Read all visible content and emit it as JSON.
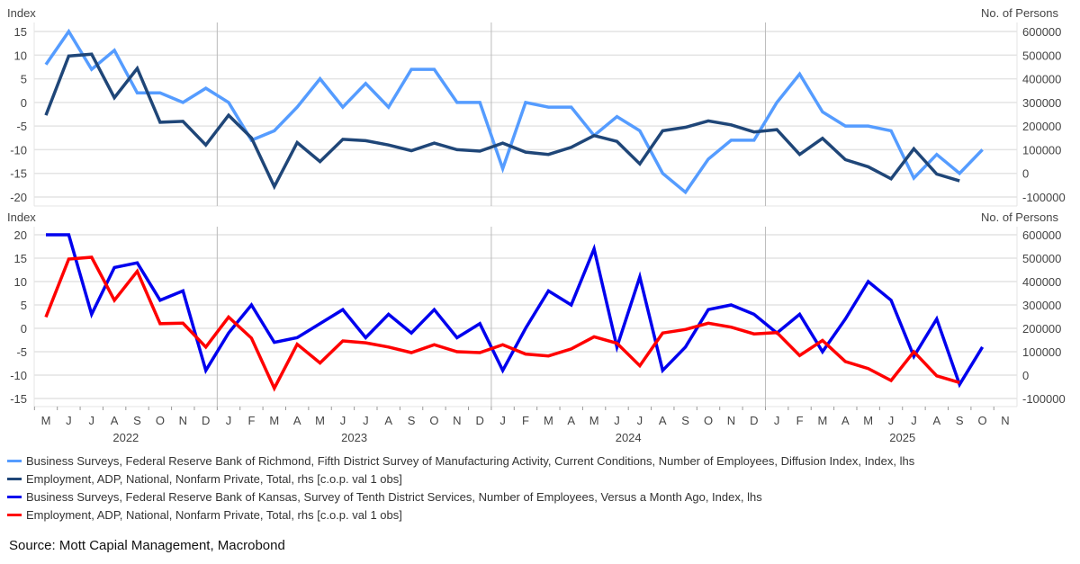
{
  "colors": {
    "richmond": "#559cff",
    "adp_top": "#1f4678",
    "kansas": "#0000ee",
    "adp_bottom": "#ff0000",
    "grid": "#e4e4e4",
    "year_line": "#bbbbbb"
  },
  "x_months": [
    "M",
    "J",
    "J",
    "A",
    "S",
    "O",
    "N",
    "D",
    "J",
    "F",
    "M",
    "A",
    "M",
    "J",
    "J",
    "A",
    "S",
    "O",
    "N",
    "D",
    "J",
    "F",
    "M",
    "A",
    "M",
    "J",
    "J",
    "A",
    "S",
    "O",
    "N",
    "D",
    "J",
    "F",
    "M",
    "A",
    "M",
    "J",
    "J",
    "A",
    "S",
    "O",
    "N"
  ],
  "x_years": [
    {
      "label": "2022",
      "center_month": "2022-09"
    },
    {
      "label": "2023",
      "center_month": "2023-07"
    },
    {
      "label": "2024",
      "center_month": "2024-07"
    },
    {
      "label": "2025",
      "center_month": "2025-07"
    }
  ],
  "chart_data": [
    {
      "type": "line",
      "x_start": "2022-05",
      "x_end": "2025-11",
      "ylabel_left": "Index",
      "ylabel_right": "No. of Persons",
      "ylim_left": [
        -20,
        15
      ],
      "yticks_left": [
        15,
        10,
        5,
        0,
        -5,
        -10,
        -15,
        -20
      ],
      "ylim_right": [
        -100000,
        600000
      ],
      "yticks_right": [
        600000,
        500000,
        400000,
        300000,
        200000,
        100000,
        0,
        -100000
      ],
      "grid": true,
      "series": [
        {
          "name": "Business Surveys, Federal Reserve Bank of Richmond, Fifth District Survey of Manufacturing Activity, Current Conditions, Number of Employees, Diffusion Index, Index, lhs",
          "axis": "left",
          "color_key": "richmond",
          "start": "2022-05",
          "values": [
            8,
            15,
            7,
            11,
            2,
            2,
            0,
            3,
            0,
            -8,
            -6,
            -1,
            5,
            -1,
            4,
            -1,
            7,
            7,
            0,
            0,
            -14,
            0,
            -1,
            -1,
            -7,
            -3,
            -6,
            -15,
            -19,
            -12,
            -8,
            -8,
            0,
            6,
            -2,
            -5,
            -5,
            -6,
            -16,
            -11,
            -15,
            -10
          ]
        },
        {
          "name": "Employment, ADP, National, Nonfarm Private, Total, rhs [c.o.p. val 1 obs]",
          "axis": "right",
          "color_key": "adp_top",
          "start": "2022-05",
          "values": [
            246000,
            496000,
            504000,
            320000,
            444000,
            216000,
            220000,
            120000,
            246000,
            150000,
            -56000,
            130000,
            50000,
            144000,
            138000,
            120000,
            96000,
            128000,
            100000,
            94000,
            128000,
            90000,
            80000,
            110000,
            160000,
            135000,
            40000,
            180000,
            195000,
            222000,
            205000,
            175000,
            185000,
            80000,
            148000,
            58000,
            28000,
            -23000,
            104000,
            -3000,
            -32000
          ]
        }
      ]
    },
    {
      "type": "line",
      "x_start": "2022-05",
      "x_end": "2025-11",
      "ylabel_left": "Index",
      "ylabel_right": "No. of Persons",
      "ylim_left": [
        -15,
        20
      ],
      "yticks_left": [
        20,
        15,
        10,
        5,
        0,
        -5,
        -10,
        -15
      ],
      "ylim_right": [
        -100000,
        600000
      ],
      "yticks_right": [
        600000,
        500000,
        400000,
        300000,
        200000,
        100000,
        0,
        -100000
      ],
      "grid": true,
      "series": [
        {
          "name": "Business Surveys, Federal Reserve Bank of Kansas, Survey of Tenth District Services, Number of Employees, Versus a Month Ago, Index, lhs",
          "axis": "left",
          "color_key": "kansas",
          "start": "2022-05",
          "values": [
            20,
            20,
            3,
            13,
            14,
            6,
            8,
            -9,
            -1,
            5,
            -3,
            -2,
            1,
            4,
            -2,
            3,
            -1,
            4,
            -2,
            1,
            -9,
            0,
            8,
            5,
            17,
            -4,
            11,
            -9,
            -4,
            4,
            5,
            3,
            -1,
            3,
            -5,
            2,
            10,
            6,
            -6,
            2,
            -12,
            -4
          ]
        },
        {
          "name": "Employment, ADP, National, Nonfarm Private, Total, rhs [c.o.p. val 1 obs]",
          "axis": "right",
          "color_key": "adp_bottom",
          "start": "2022-05",
          "values": [
            248000,
            496000,
            504000,
            320000,
            444000,
            220000,
            222000,
            120000,
            248000,
            158000,
            -56000,
            132000,
            52000,
            146000,
            138000,
            120000,
            96000,
            130000,
            100000,
            96000,
            130000,
            90000,
            82000,
            112000,
            164000,
            136000,
            40000,
            180000,
            195000,
            222000,
            205000,
            176000,
            182000,
            84000,
            148000,
            58000,
            28000,
            -23000,
            100000,
            -3000,
            -32000
          ]
        }
      ]
    }
  ],
  "legend": [
    {
      "label": "Business Surveys, Federal Reserve Bank of Richmond, Fifth District Survey of Manufacturing Activity, Current Conditions, Number of Employees, Diffusion Index, Index, lhs",
      "color_key": "richmond"
    },
    {
      "label": "Employment, ADP, National, Nonfarm Private, Total, rhs [c.o.p. val 1 obs]",
      "color_key": "adp_top"
    },
    {
      "label": "Business Surveys, Federal Reserve Bank of Kansas, Survey of Tenth District Services, Number of Employees, Versus a Month Ago, Index, lhs",
      "color_key": "kansas"
    },
    {
      "label": "Employment, ADP, National, Nonfarm Private, Total, rhs [c.o.p. val 1 obs]",
      "color_key": "adp_bottom"
    }
  ],
  "source": "Source: Mott Capial Management, Macrobond"
}
